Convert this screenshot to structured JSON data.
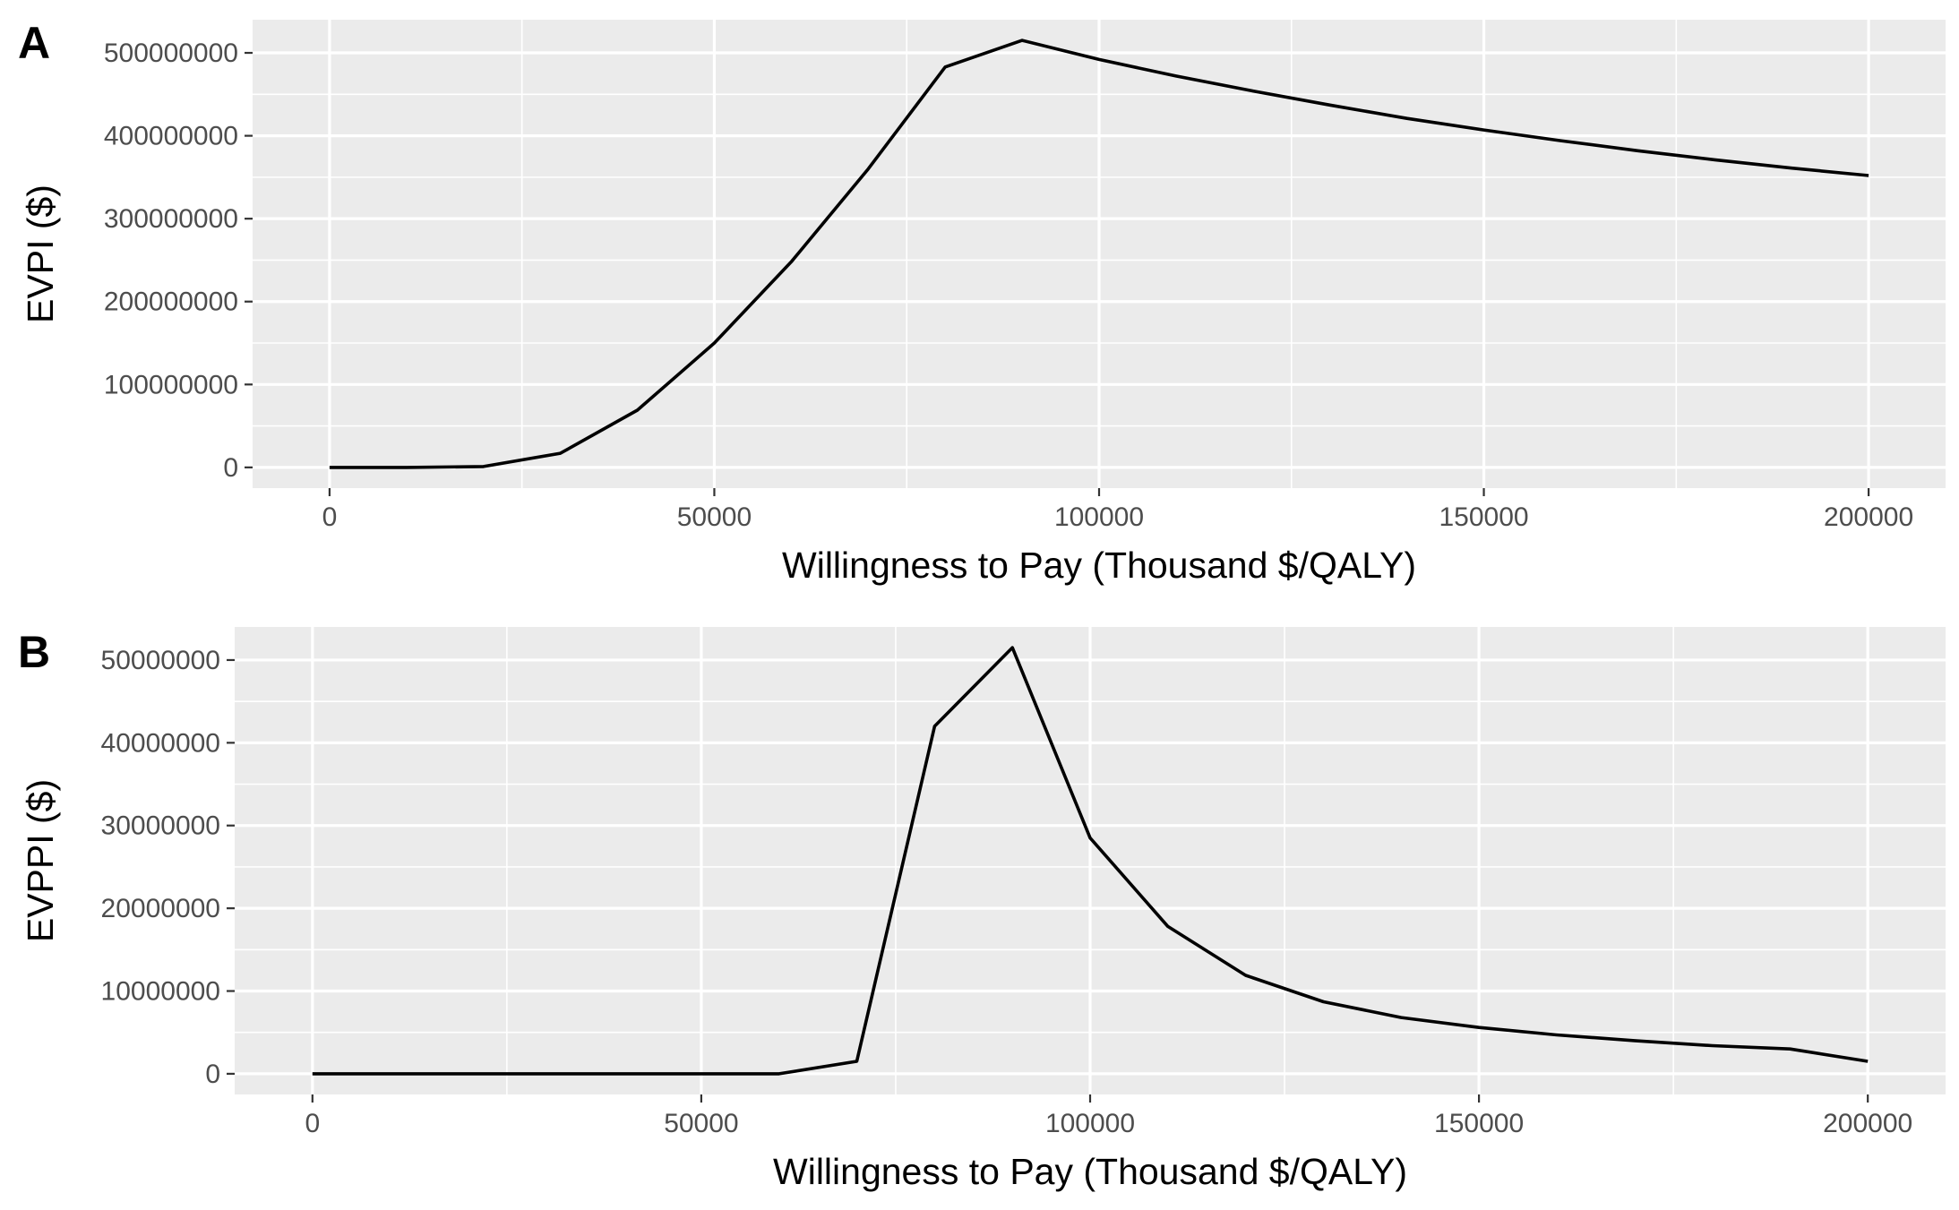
{
  "chart_data": [
    {
      "type": "line",
      "panel_tag": "A",
      "title": "",
      "xlabel": "Willingness to Pay (Thousand $/QALY)",
      "ylabel": "EVPI ($)",
      "xlim": [
        -10000,
        210000
      ],
      "ylim": [
        -25000000,
        540000000
      ],
      "x_ticks": [
        0,
        50000,
        100000,
        150000,
        200000
      ],
      "x_tick_labels": [
        "0",
        "50000",
        "100000",
        "150000",
        "200000"
      ],
      "y_ticks": [
        0,
        100000000,
        200000000,
        300000000,
        400000000,
        500000000
      ],
      "y_tick_labels": [
        "0",
        "100000000",
        "200000000",
        "300000000",
        "400000000",
        "500000000"
      ],
      "grid": true,
      "x": [
        0,
        10000,
        20000,
        30000,
        40000,
        50000,
        60000,
        70000,
        80000,
        90000,
        100000,
        110000,
        120000,
        130000,
        140000,
        150000,
        160000,
        170000,
        180000,
        190000,
        200000
      ],
      "y": [
        0,
        0,
        1000000,
        17000000,
        69000000,
        150000000,
        248000000,
        360000000,
        483000000,
        515000000,
        492000000,
        472000000,
        454000000,
        437000000,
        421000000,
        407000000,
        394000000,
        382000000,
        371000000,
        361000000,
        352000000
      ]
    },
    {
      "type": "line",
      "panel_tag": "B",
      "title": "",
      "xlabel": "Willingness to Pay (Thousand $/QALY)",
      "ylabel": "EVPPI ($)",
      "xlim": [
        -10000,
        210000
      ],
      "ylim": [
        -2500000,
        54000000
      ],
      "x_ticks": [
        0,
        50000,
        100000,
        150000,
        200000
      ],
      "x_tick_labels": [
        "0",
        "50000",
        "100000",
        "150000",
        "200000"
      ],
      "y_ticks": [
        0,
        10000000,
        20000000,
        30000000,
        40000000,
        50000000
      ],
      "y_tick_labels": [
        "0",
        "10000000",
        "20000000",
        "30000000",
        "40000000",
        "50000000"
      ],
      "grid": true,
      "x": [
        0,
        10000,
        20000,
        30000,
        40000,
        50000,
        60000,
        70000,
        80000,
        90000,
        100000,
        110000,
        120000,
        130000,
        140000,
        150000,
        160000,
        170000,
        180000,
        190000,
        200000
      ],
      "y": [
        0,
        0,
        0,
        0,
        0,
        0,
        0,
        1500000,
        42000000,
        51500000,
        28500000,
        17800000,
        11900000,
        8700000,
        6800000,
        5600000,
        4700000,
        4000000,
        3400000,
        3000000,
        1500000
      ]
    }
  ]
}
